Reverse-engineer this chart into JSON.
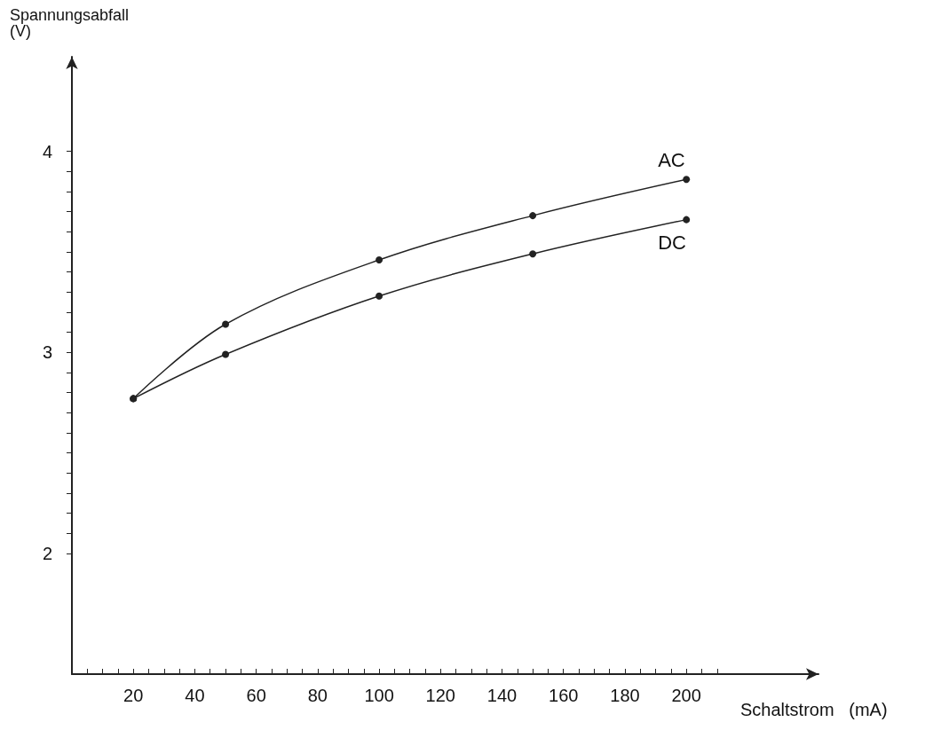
{
  "chart_data": {
    "type": "line",
    "xlabel": "Schaltstrom   (mA)",
    "ylabel": "Spannungsabfall\n(V)",
    "x": [
      20,
      50,
      100,
      150,
      200
    ],
    "series": [
      {
        "name": "AC",
        "color": "#222222",
        "values": [
          2.77,
          3.14,
          3.46,
          3.68,
          3.86
        ]
      },
      {
        "name": "DC",
        "color": "#222222",
        "values": [
          2.77,
          2.99,
          3.28,
          3.49,
          3.66
        ]
      }
    ],
    "xlim": [
      0,
      243
    ],
    "ylim": [
      1.4,
      4.47
    ],
    "xticks": [
      {
        "value": 5,
        "label": null
      },
      {
        "value": 10,
        "label": null
      },
      {
        "value": 15,
        "label": null
      },
      20,
      {
        "value": 25,
        "label": null
      },
      {
        "value": 30,
        "label": null
      },
      {
        "value": 35,
        "label": null
      },
      40,
      {
        "value": 45,
        "label": null
      },
      {
        "value": 50,
        "label": null
      },
      {
        "value": 55,
        "label": null
      },
      60,
      {
        "value": 65,
        "label": null
      },
      {
        "value": 70,
        "label": null
      },
      {
        "value": 75,
        "label": null
      },
      80,
      {
        "value": 85,
        "label": null
      },
      {
        "value": 90,
        "label": null
      },
      {
        "value": 95,
        "label": null
      },
      100,
      {
        "value": 105,
        "label": null
      },
      {
        "value": 110,
        "label": null
      },
      {
        "value": 115,
        "label": null
      },
      120,
      {
        "value": 125,
        "label": null
      },
      {
        "value": 130,
        "label": null
      },
      {
        "value": 135,
        "label": null
      },
      140,
      {
        "value": 145,
        "label": null
      },
      {
        "value": 150,
        "label": null
      },
      {
        "value": 155,
        "label": null
      },
      160,
      {
        "value": 165,
        "label": null
      },
      {
        "value": 170,
        "label": null
      },
      {
        "value": 175,
        "label": null
      },
      180,
      {
        "value": 185,
        "label": null
      },
      {
        "value": 190,
        "label": null
      },
      {
        "value": 195,
        "label": null
      },
      200,
      {
        "value": 205,
        "label": null
      },
      {
        "value": 210,
        "label": null
      }
    ],
    "yticks": [
      2,
      {
        "value": 2.1,
        "label": null
      },
      {
        "value": 2.2,
        "label": null
      },
      {
        "value": 2.3,
        "label": null
      },
      {
        "value": 2.4,
        "label": null
      },
      {
        "value": 2.5,
        "label": null
      },
      {
        "value": 2.6,
        "label": null
      },
      {
        "value": 2.7,
        "label": null
      },
      {
        "value": 2.8,
        "label": null
      },
      {
        "value": 2.9,
        "label": null
      },
      3,
      {
        "value": 3.1,
        "label": null
      },
      {
        "value": 3.2,
        "label": null
      },
      {
        "value": 3.3,
        "label": null
      },
      {
        "value": 3.4,
        "label": null
      },
      {
        "value": 3.5,
        "label": null
      },
      {
        "value": 3.6,
        "label": null
      },
      {
        "value": 3.7,
        "label": null
      },
      {
        "value": 3.8,
        "label": null
      },
      {
        "value": 3.9,
        "label": null
      },
      4
    ],
    "grid": false,
    "legend": false,
    "marker": "circle",
    "line_style": "solid"
  }
}
